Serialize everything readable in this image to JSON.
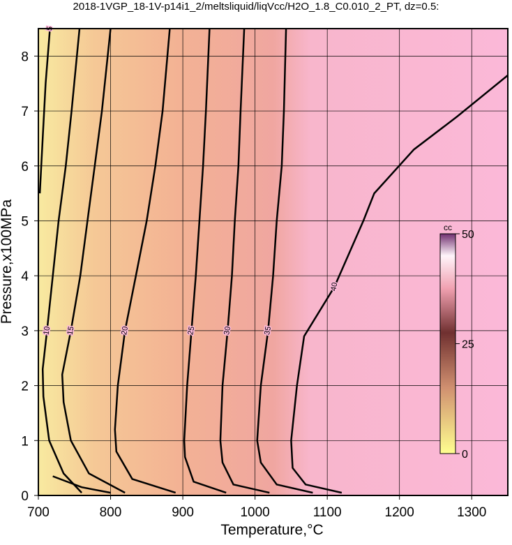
{
  "chart_data": {
    "type": "contour",
    "title": "2018-1VGP_18-1V-p14i1_2/meltsliquid/liqVcc/H2O_1.8_C0.010_2_PT, dz=0.5:",
    "x_label": "Temperature,°C",
    "y_label": "Pressure,x100MPa",
    "xlim": [
      700,
      1350
    ],
    "ylim": [
      0,
      8.5
    ],
    "xticks": [
      700,
      800,
      900,
      1000,
      1100,
      1200,
      1300
    ],
    "yticks": [
      0,
      1,
      2,
      3,
      4,
      5,
      6,
      7,
      8
    ],
    "grid": true,
    "contours": [
      {
        "level": 5,
        "x": [
          702,
          706,
          710,
          716,
          null,
          720,
          760,
          800
        ],
        "y": [
          5.5,
          6.5,
          7.5,
          8.5,
          null,
          0.35,
          0.15,
          0.05
        ]
      },
      {
        "level": 10,
        "x": [
          760,
          735,
          715,
          707,
          706,
          712,
          720,
          728,
          738,
          746,
          757
        ],
        "y": [
          0.05,
          0.4,
          1,
          1.8,
          2.3,
          3,
          4,
          5,
          6,
          7,
          8.5
        ]
      },
      {
        "level": 15,
        "x": [
          820,
          770,
          745,
          735,
          733,
          745,
          758,
          768,
          778,
          788,
          800
        ],
        "y": [
          0.05,
          0.4,
          1,
          1.7,
          2.2,
          3,
          4,
          5,
          6,
          7,
          8.5
        ]
      },
      {
        "level": 20,
        "x": [
          890,
          830,
          808,
          806,
          810,
          820,
          835,
          850,
          862,
          872,
          882
        ],
        "y": [
          0.05,
          0.3,
          0.8,
          1.2,
          2,
          3,
          4,
          5,
          6,
          7,
          8.5
        ]
      },
      {
        "level": 25,
        "x": [
          960,
          915,
          903,
          902,
          906,
          912,
          918,
          923,
          928,
          932,
          937
        ],
        "y": [
          0.05,
          0.25,
          0.7,
          1,
          2,
          3,
          4,
          5,
          6,
          7,
          8.5
        ]
      },
      {
        "level": 30,
        "x": [
          1020,
          970,
          955,
          952,
          955,
          962,
          968,
          972,
          977,
          980,
          985
        ],
        "y": [
          0.05,
          0.2,
          0.6,
          1,
          2,
          3,
          4,
          5,
          6,
          7,
          8.5
        ]
      },
      {
        "level": 35,
        "x": [
          1080,
          1030,
          1008,
          1003,
          1008,
          1018,
          1025,
          1030,
          1037,
          1040,
          1043
        ],
        "y": [
          0.05,
          0.2,
          0.6,
          1,
          2,
          3,
          4,
          5,
          6,
          7,
          8.5
        ]
      },
      {
        "level": 40,
        "x": [
          1120,
          1070,
          1052,
          1050,
          1058,
          1068,
          1110,
          1150,
          1165,
          1220,
          1280,
          1350
        ],
        "y": [
          0.05,
          0.2,
          0.5,
          1,
          2,
          2.9,
          3.8,
          5.0,
          5.5,
          6.3,
          6.9,
          7.65
        ]
      }
    ],
    "colorbar": {
      "label": "cc",
      "lim": [
        0,
        50
      ],
      "ticks": [
        0,
        25,
        50
      ]
    }
  }
}
